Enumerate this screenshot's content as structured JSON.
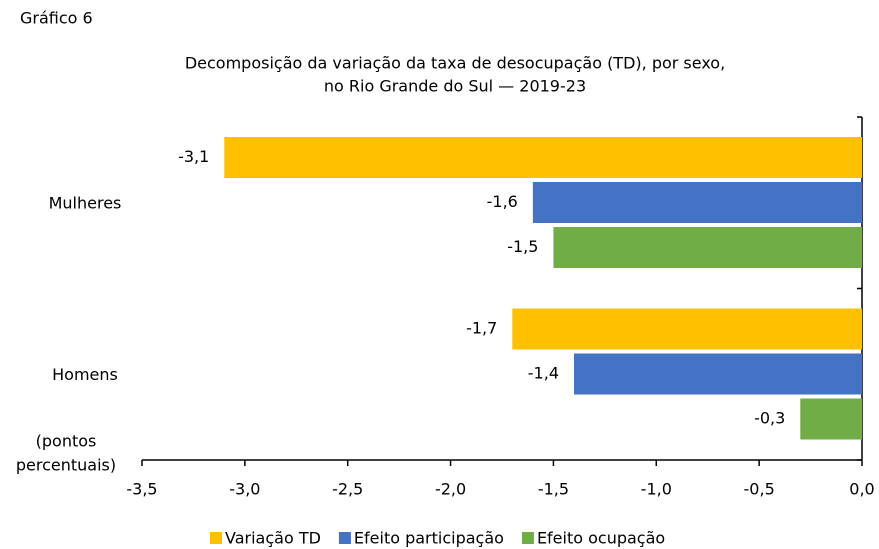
{
  "chart_data": {
    "type": "hbar",
    "label": "Gráfico 6",
    "title": [
      "Decomposição da variação da taxa de desocupação (TD), por sexo,",
      "no Rio Grande do Sul — 2019-23"
    ],
    "x_label": [
      "(pontos",
      "percentuais)"
    ],
    "categories": [
      "Mulheres",
      "Homens"
    ],
    "series": [
      {
        "name": "Variação TD",
        "color": "#ffc000",
        "values": [
          -3.1,
          -1.7
        ],
        "value_labels": [
          "-3,1",
          "-1,7"
        ]
      },
      {
        "name": "Efeito participação",
        "color": "#4472c4",
        "values": [
          -1.6,
          -1.4
        ],
        "value_labels": [
          "-1,6",
          "-1,4"
        ]
      },
      {
        "name": "Efeito ocupação",
        "color": "#70ad47",
        "values": [
          -1.5,
          -0.3
        ],
        "value_labels": [
          "-1,5",
          "-0,3"
        ]
      }
    ],
    "xlim": [
      -3.5,
      0
    ],
    "xticks": [
      {
        "value": -3.5,
        "label": "-3,5"
      },
      {
        "value": -3,
        "label": "-3,0"
      },
      {
        "value": -2.5,
        "label": "-2,5"
      },
      {
        "value": -2,
        "label": "-2,0"
      },
      {
        "value": -1.5,
        "label": "-1,5"
      },
      {
        "value": -1,
        "label": "-1,0"
      },
      {
        "value": -0.5,
        "label": "-0,5"
      },
      {
        "value": 0,
        "label": "0,0"
      }
    ],
    "legend": "bottom"
  }
}
